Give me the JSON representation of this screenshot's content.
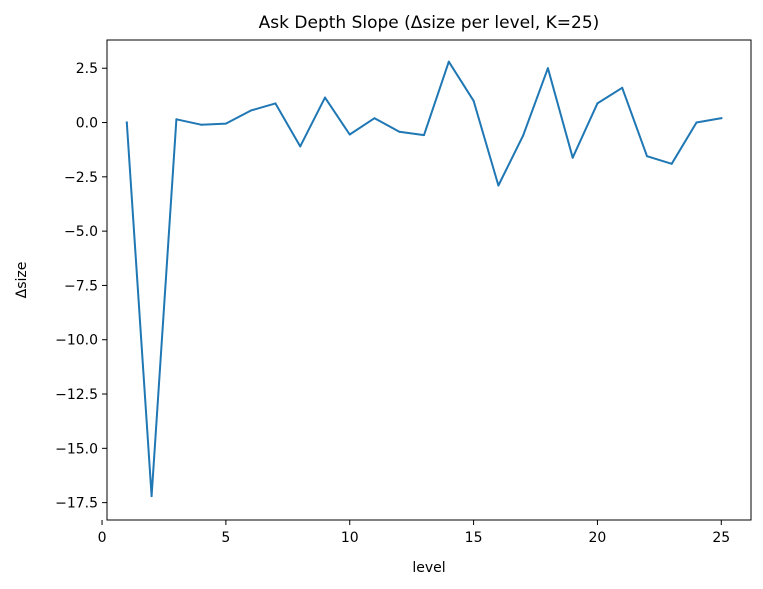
{
  "chart_data": {
    "type": "line",
    "title": "Ask Depth Slope (Δsize per level, K=25)",
    "xlabel": "level",
    "ylabel": "Δsize",
    "xlim": [
      0.2,
      26.2
    ],
    "ylim": [
      -18.3,
      3.8
    ],
    "xticks": [
      0,
      5,
      10,
      15,
      20,
      25
    ],
    "yticks": [
      2.5,
      0.0,
      -2.5,
      -5.0,
      -7.5,
      -10.0,
      -12.5,
      -15.0,
      -17.5
    ],
    "xtick_labels": [
      "0",
      "5",
      "10",
      "15",
      "20",
      "25"
    ],
    "ytick_labels": [
      "2.5",
      "0.0",
      "−2.5",
      "−5.0",
      "−7.5",
      "−10.0",
      "−12.5",
      "−15.0",
      "−17.5"
    ],
    "grid": false,
    "series": [
      {
        "color": "#1f77b4",
        "x": [
          1,
          2,
          3,
          4,
          5,
          6,
          7,
          8,
          9,
          10,
          11,
          12,
          13,
          14,
          15,
          16,
          17,
          18,
          19,
          20,
          21,
          22,
          23,
          24,
          25
        ],
        "y": [
          0.0,
          -17.2,
          0.15,
          -0.1,
          -0.05,
          0.55,
          0.88,
          -1.1,
          1.15,
          -0.55,
          0.2,
          -0.42,
          -0.58,
          2.8,
          1.0,
          -2.9,
          -0.6,
          2.5,
          -1.62,
          0.88,
          1.6,
          -1.55,
          -1.9,
          0.0,
          0.2
        ]
      }
    ]
  }
}
